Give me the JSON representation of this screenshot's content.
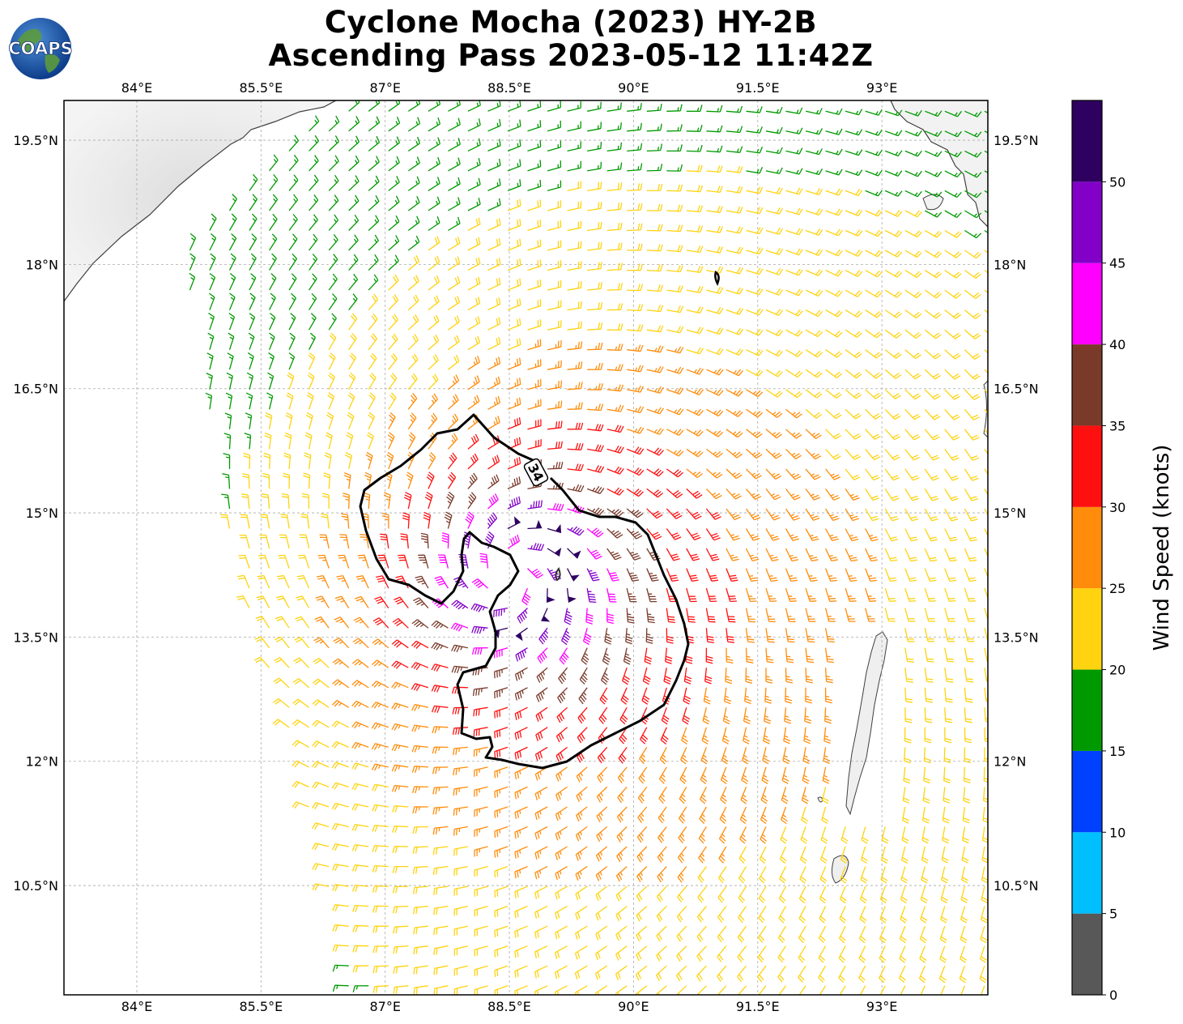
{
  "title": {
    "line1": "Cyclone Mocha (2023) HY-2B",
    "line2": "Ascending Pass 2023-05-12 11:42Z"
  },
  "logo": {
    "text": "COAPS",
    "icon": "globe-logo-icon"
  },
  "axes": {
    "lon_labels": [
      "84°E",
      "85.5°E",
      "87°E",
      "88.5°E",
      "90°E",
      "91.5°E",
      "93°E"
    ],
    "lon_values": [
      84,
      85.5,
      87,
      88.5,
      90,
      91.5,
      93
    ],
    "lat_labels": [
      "19.5°N",
      "18°N",
      "16.5°N",
      "15°N",
      "13.5°N",
      "12°N",
      "10.5°N"
    ],
    "lat_values": [
      19.5,
      18,
      16.5,
      15,
      13.5,
      12,
      10.5
    ],
    "lon_range": [
      83.12,
      94.28
    ],
    "lat_range": [
      9.18,
      19.98
    ],
    "grid": true
  },
  "colorbar": {
    "label": "Wind Speed (knots)",
    "tick_labels": [
      "0",
      "5",
      "10",
      "15",
      "20",
      "25",
      "30",
      "35",
      "40",
      "45",
      "50"
    ],
    "bins": [
      {
        "min": 0,
        "max": 5,
        "color": "#585858"
      },
      {
        "min": 5,
        "max": 10,
        "color": "#00bfff"
      },
      {
        "min": 10,
        "max": 15,
        "color": "#0041ff"
      },
      {
        "min": 15,
        "max": 20,
        "color": "#009a00"
      },
      {
        "min": 20,
        "max": 25,
        "color": "#ffd30f"
      },
      {
        "min": 25,
        "max": 30,
        "color": "#ff8c0a"
      },
      {
        "min": 30,
        "max": 35,
        "color": "#ff1010"
      },
      {
        "min": 35,
        "max": 40,
        "color": "#7a3a2a"
      },
      {
        "min": 40,
        "max": 45,
        "color": "#ff00ff"
      },
      {
        "min": 45,
        "max": 50,
        "color": "#8200c8"
      },
      {
        "min": 50,
        "max": 55,
        "color": "#2e0060"
      }
    ]
  },
  "storm": {
    "center_lon": 88.55,
    "center_lat": 14.25,
    "contour_label": "34",
    "contour_knots": 34
  }
}
